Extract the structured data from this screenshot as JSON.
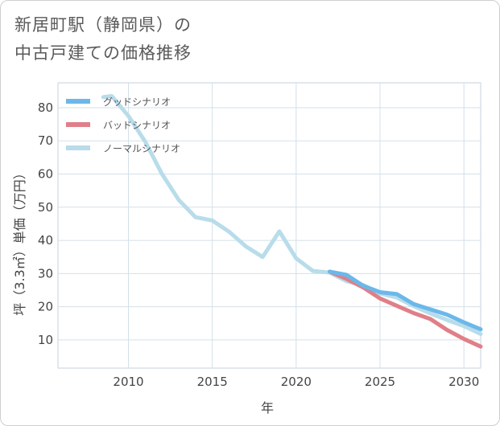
{
  "title": {
    "line1": "新居町駅（静岡県）の",
    "line2": "中古戸建ての価格推移"
  },
  "chart_data": {
    "type": "line",
    "xlabel": "年",
    "ylabel": "坪（3.3㎡）単価（万円）",
    "xlim": [
      2005.8,
      2031
    ],
    "ylim": [
      1.5,
      87.5
    ],
    "xticks": [
      2010,
      2015,
      2020,
      2025,
      2030
    ],
    "yticks": [
      10,
      20,
      30,
      40,
      50,
      60,
      70,
      80
    ],
    "grid": true,
    "legend_position": "top-left",
    "series": [
      {
        "name": "グッドシナリオ",
        "color": "#6bb8ea",
        "x": [
          2022,
          2023,
          2024,
          2025,
          2026,
          2027,
          2028,
          2029,
          2030,
          2031
        ],
        "y": [
          30.6,
          29.6,
          26.3,
          24.4,
          23.8,
          20.8,
          19.2,
          17.6,
          15.3,
          13.2
        ]
      },
      {
        "name": "バッドシナリオ",
        "color": "#e07f88",
        "x": [
          2022,
          2023,
          2024,
          2025,
          2026,
          2027,
          2028,
          2029,
          2030,
          2031
        ],
        "y": [
          30.6,
          28.4,
          25.8,
          22.5,
          20.3,
          18.1,
          16.3,
          13.0,
          10.3,
          8.0
        ]
      },
      {
        "name": "ノーマルシナリオ",
        "color": "#b8dcea",
        "x": [
          2008.5,
          2009,
          2010,
          2011,
          2012,
          2013,
          2014,
          2015,
          2016,
          2017,
          2018,
          2019,
          2020,
          2021,
          2022,
          2023,
          2024,
          2025,
          2026,
          2027,
          2028,
          2029,
          2030,
          2031
        ],
        "y": [
          83.2,
          83.5,
          77.5,
          69.8,
          60.0,
          52.2,
          47.0,
          46.0,
          42.6,
          38.2,
          35.0,
          42.7,
          34.6,
          30.8,
          30.3,
          27.7,
          26.5,
          24.0,
          22.8,
          20.2,
          18.0,
          16.0,
          14.2,
          11.8
        ]
      }
    ]
  }
}
